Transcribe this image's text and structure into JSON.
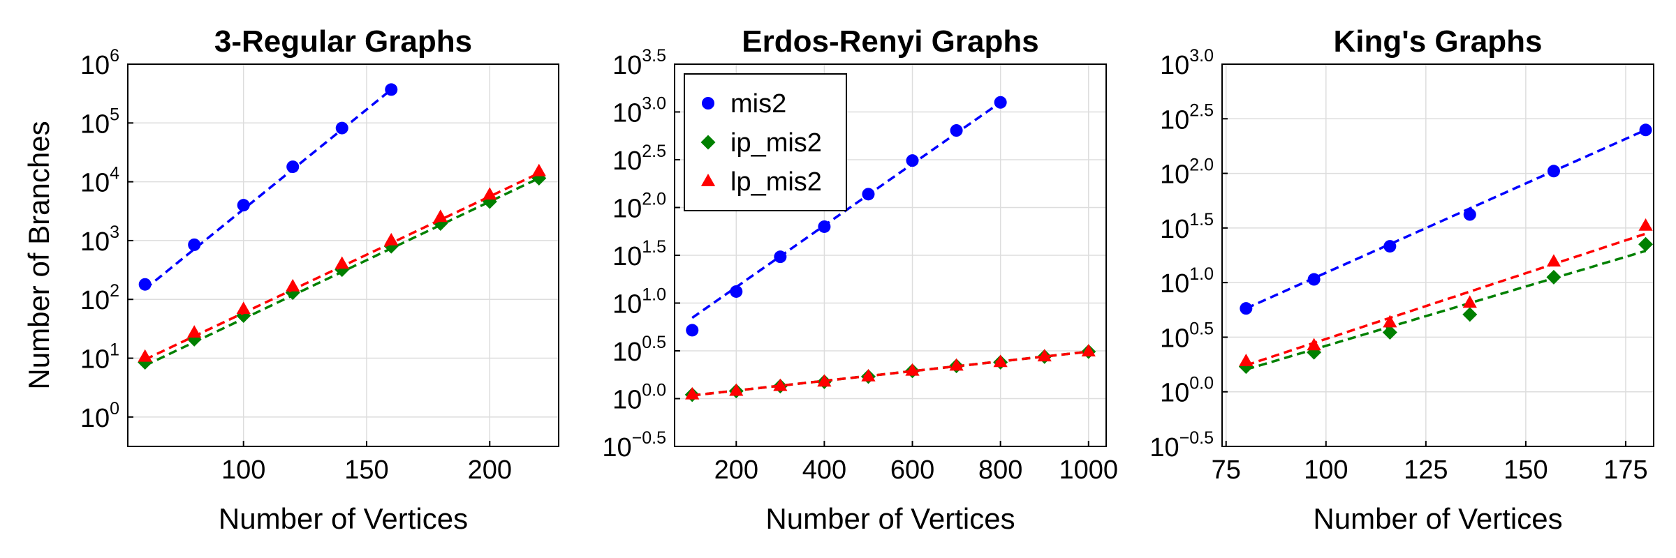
{
  "colors": {
    "mis2": "#0000ff",
    "ip_mis2": "#008000",
    "lp_mis2": "#ff0000"
  },
  "legend": {
    "placement": "top-left of middle panel",
    "entries": [
      {
        "name": "mis2",
        "marker": "circle",
        "color": "#0000ff"
      },
      {
        "name": "ip_mis2",
        "marker": "diamond",
        "color": "#008000"
      },
      {
        "name": "lp_mis2",
        "marker": "triangle",
        "color": "#ff0000"
      }
    ]
  },
  "chart_data": [
    {
      "type": "scatter",
      "title": "3-Regular Graphs",
      "xlabel": "Number of Vertices",
      "ylabel": "Number of Branches",
      "yscale": "log10",
      "xlim": [
        53,
        228
      ],
      "ylim_log10": [
        -0.5,
        6
      ],
      "xticks": [
        100,
        150,
        200
      ],
      "xtick_labels": [
        "100",
        "150",
        "200"
      ],
      "yticks_log10": [
        0,
        1,
        2,
        3,
        4,
        5,
        6
      ],
      "ytick_labels": [
        {
          "base": "10",
          "exp": "0"
        },
        {
          "base": "10",
          "exp": "1"
        },
        {
          "base": "10",
          "exp": "2"
        },
        {
          "base": "10",
          "exp": "3"
        },
        {
          "base": "10",
          "exp": "4"
        },
        {
          "base": "10",
          "exp": "5"
        },
        {
          "base": "10",
          "exp": "6"
        }
      ],
      "grid": true,
      "series": [
        {
          "name": "mis2",
          "marker": "circle",
          "x": [
            60,
            80,
            100,
            120,
            140,
            160
          ],
          "y": [
            180,
            850,
            4000,
            18000,
            82000,
            370000
          ],
          "fit": [
            [
              60,
              160
            ],
            [
              150,
              370000
            ]
          ]
        },
        {
          "name": "ip_mis2",
          "marker": "diamond",
          "x": [
            60,
            80,
            100,
            120,
            140,
            160,
            180,
            200,
            220
          ],
          "y": [
            8.5,
            21,
            53,
            130,
            320,
            800,
            1950,
            4600,
            11500
          ],
          "fit": [
            [
              60,
              220
            ],
            [
              7.5,
              11500
            ]
          ]
        },
        {
          "name": "lp_mis2",
          "marker": "triangle",
          "x": [
            60,
            80,
            100,
            120,
            140,
            160,
            180,
            200,
            220
          ],
          "y": [
            10.5,
            27,
            68,
            165,
            400,
            1000,
            2500,
            6000,
            15000
          ],
          "fit": [
            [
              60,
              220
            ],
            [
              9.5,
              14000
            ]
          ]
        }
      ]
    },
    {
      "type": "scatter",
      "title": "Erdos-Renyi Graphs",
      "xlabel": "Number of Vertices",
      "ylabel": "",
      "yscale": "log10",
      "xlim": [
        60,
        1040
      ],
      "ylim_log10": [
        -0.5,
        3.5
      ],
      "xticks": [
        200,
        400,
        600,
        800,
        1000
      ],
      "xtick_labels": [
        "200",
        "400",
        "600",
        "800",
        "1000"
      ],
      "yticks_log10": [
        -0.5,
        0,
        0.5,
        1,
        1.5,
        2,
        2.5,
        3,
        3.5
      ],
      "ytick_labels": [
        {
          "base": "10",
          "exp": "−0.5"
        },
        {
          "base": "10",
          "exp": "0.0"
        },
        {
          "base": "10",
          "exp": "0.5"
        },
        {
          "base": "10",
          "exp": "1.0"
        },
        {
          "base": "10",
          "exp": "1.5"
        },
        {
          "base": "10",
          "exp": "2.0"
        },
        {
          "base": "10",
          "exp": "2.5"
        },
        {
          "base": "10",
          "exp": "3.0"
        },
        {
          "base": "10",
          "exp": "3.5"
        }
      ],
      "grid": true,
      "series": [
        {
          "name": "mis2",
          "marker": "circle",
          "x": [
            100,
            200,
            300,
            400,
            500,
            600,
            700,
            800
          ],
          "y": [
            5.2,
            13.2,
            30.5,
            63,
            138,
            310,
            640,
            1260
          ],
          "fit": [
            [
              100,
              800
            ],
            [
              7.0,
              1260
            ]
          ]
        },
        {
          "name": "ip_mis2",
          "marker": "diamond",
          "x": [
            100,
            200,
            300,
            400,
            500,
            600,
            700,
            800,
            900,
            1000
          ],
          "y": [
            1.1,
            1.2,
            1.35,
            1.5,
            1.7,
            1.95,
            2.2,
            2.4,
            2.75,
            3.1
          ],
          "fit": [
            [
              100,
              1000
            ],
            [
              1.08,
              3.1
            ]
          ]
        },
        {
          "name": "lp_mis2",
          "marker": "triangle",
          "x": [
            100,
            200,
            300,
            400,
            500,
            600,
            700,
            800,
            900,
            1000
          ],
          "y": [
            1.1,
            1.2,
            1.35,
            1.5,
            1.7,
            1.95,
            2.2,
            2.4,
            2.75,
            3.1
          ],
          "fit": [
            [
              100,
              1000
            ],
            [
              1.08,
              3.1
            ]
          ]
        }
      ]
    },
    {
      "type": "scatter",
      "title": "King's Graphs",
      "xlabel": "Number of Vertices",
      "ylabel": "",
      "yscale": "log10",
      "xlim": [
        74,
        182
      ],
      "ylim_log10": [
        -0.5,
        3.0
      ],
      "xticks": [
        75,
        100,
        125,
        150,
        175
      ],
      "xtick_labels": [
        "75",
        "100",
        "125",
        "150",
        "175"
      ],
      "yticks_log10": [
        -0.5,
        0,
        0.5,
        1,
        1.5,
        2,
        2.5,
        3
      ],
      "ytick_labels": [
        {
          "base": "10",
          "exp": "−0.5"
        },
        {
          "base": "10",
          "exp": "0.0"
        },
        {
          "base": "10",
          "exp": "0.5"
        },
        {
          "base": "10",
          "exp": "1.0"
        },
        {
          "base": "10",
          "exp": "1.5"
        },
        {
          "base": "10",
          "exp": "2.0"
        },
        {
          "base": "10",
          "exp": "2.5"
        },
        {
          "base": "10",
          "exp": "3.0"
        }
      ],
      "grid": true,
      "series": [
        {
          "name": "mis2",
          "marker": "circle",
          "x": [
            80,
            97,
            116,
            136,
            157,
            180
          ],
          "y": [
            5.8,
            10.7,
            21.5,
            42,
            105,
            250
          ],
          "fit": [
            [
              80,
              180
            ],
            [
              5.8,
              250
            ]
          ]
        },
        {
          "name": "ip_mis2",
          "marker": "diamond",
          "x": [
            80,
            97,
            116,
            136,
            157,
            180
          ],
          "y": [
            1.7,
            2.3,
            3.5,
            5.1,
            11.2,
            22.4
          ],
          "fit": [
            [
              80,
              180
            ],
            [
              1.6,
              19.5
            ]
          ]
        },
        {
          "name": "lp_mis2",
          "marker": "triangle",
          "x": [
            80,
            97,
            116,
            136,
            157,
            180
          ],
          "y": [
            1.9,
            2.65,
            4.3,
            6.5,
            15.5,
            33
          ],
          "fit": [
            [
              80,
              180
            ],
            [
              1.75,
              28
            ]
          ]
        }
      ]
    }
  ]
}
